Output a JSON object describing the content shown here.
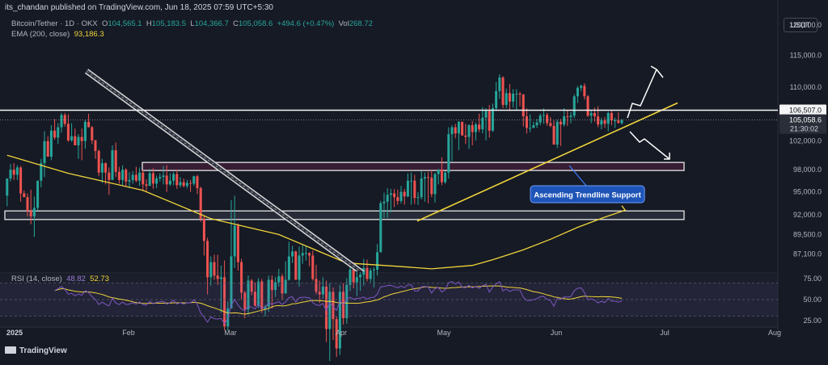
{
  "header": {
    "publisher": "its_chandan published on TradingView.com, Jun 18, 2025 07:59 UTC+5:30"
  },
  "legend": {
    "symbol": "Bitcoin/Tether · 1D · OKX",
    "open_label": "O",
    "open": "104,565.1",
    "high_label": "H",
    "high": "105,183.5",
    "low_label": "L",
    "low": "104,366.7",
    "close_label": "C",
    "close": "105,058.6",
    "change": "+494.6 (+0.47%)",
    "vol_label": "Vol",
    "vol": "268.72",
    "ema_label": "EMA (200, close)",
    "ema_value": "93,186.3"
  },
  "currency_button": "USDT",
  "price_labels": {
    "resistance": "106,507.0",
    "last_price": "105,058.6",
    "countdown": "21:30:02"
  },
  "annotation": "Ascending Trendline Support",
  "rsi_legend": {
    "label": "RSI (14, close)",
    "rsi": "48.82",
    "ma": "52.73"
  },
  "footer": {
    "brand": "TradingView"
  },
  "colors": {
    "background": "#161a25",
    "up": "#26a69a",
    "down": "#ef5350",
    "trendline": "#f0d43a",
    "ema": "#f0d43a",
    "rsi": "#7e57c2",
    "annotation_bg": "#1e54b7",
    "arrows": "#ffffff"
  },
  "chart_data": {
    "type": "candlestick",
    "xaxis": {
      "ticks": [
        "2025",
        "Feb",
        "Mar",
        "Apr",
        "May",
        "Jun",
        "Jul",
        "Aug"
      ]
    },
    "yaxis": {
      "ticks": [
        "120,000.0",
        "115,000.0",
        "110,000.0",
        "102,000.0",
        "98,000.0",
        "95,000.0",
        "92,000.0",
        "89,500.0",
        "87,100.0"
      ],
      "ylim": [
        85000,
        121500
      ],
      "scale": "log"
    },
    "candles": {
      "description": "Daily OHLC, approximate, read from chart",
      "o": [
        94500,
        96800,
        98000,
        97300,
        98300,
        94800,
        94300,
        92500,
        91800,
        92900,
        96500,
        98900,
        102000,
        99800,
        103500,
        102500,
        104000,
        105800,
        104500,
        102100,
        102700,
        101400,
        102600,
        102000,
        104800,
        104000,
        102100,
        100600,
        97600,
        98900,
        97600,
        96600,
        100700,
        97700,
        96600,
        98000,
        96400,
        96600,
        97300,
        96500,
        97600,
        96000,
        95800,
        97500,
        96100,
        96800,
        97000,
        97200,
        96000,
        96500,
        97400,
        95900,
        96300,
        95800,
        96200,
        96100,
        97100,
        95500,
        91500,
        88700,
        84300,
        86100,
        84500,
        84100,
        84300,
        78700,
        80700,
        86800,
        90600,
        86100,
        82500,
        80600,
        83900,
        82600,
        81000,
        83800,
        80600,
        80900,
        84000,
        82800,
        83700,
        84400,
        82400,
        84000,
        86800,
        87400,
        84000,
        86900,
        87200,
        87200,
        86900,
        84100,
        82600,
        82300,
        83200,
        78400,
        82600,
        79500,
        76300,
        82600,
        79600,
        83400,
        85200,
        83700,
        84300,
        84600,
        85400,
        84100,
        85100,
        85200,
        87300,
        93500,
        93700,
        94600,
        94800,
        94300,
        93800,
        95000,
        94400,
        96500,
        96500,
        94200,
        94300,
        96800,
        97000,
        96900,
        94700,
        97400,
        98000,
        96300,
        97600,
        103000,
        104000,
        103100,
        104800,
        102800,
        102600,
        104300,
        103300,
        104400,
        103700,
        105400,
        106400,
        103500,
        106800,
        109400,
        111500,
        107300,
        109100,
        107800,
        109000,
        109000,
        108900,
        105600,
        103900,
        103900,
        104300,
        104700,
        105700,
        105800,
        104600,
        104200,
        101500,
        104800,
        104400,
        105600,
        105500,
        105700,
        108600,
        109900,
        110200,
        108600,
        105700,
        106100,
        105600,
        104400,
        105000,
        104500,
        106100,
        105000,
        105000,
        104600
      ],
      "h": [
        95900,
        98800,
        98900,
        98600,
        98500,
        95200,
        94800,
        95300,
        94400,
        96500,
        99500,
        103400,
        102700,
        104300,
        105200,
        104600,
        106100,
        106100,
        105900,
        104600,
        103800,
        103000,
        103800,
        105100,
        106000,
        104200,
        102200,
        100800,
        99500,
        99000,
        98300,
        101400,
        101800,
        98400,
        98600,
        98200,
        97700,
        97800,
        98400,
        98300,
        98000,
        96700,
        98100,
        98200,
        97200,
        97500,
        98500,
        98600,
        97500,
        97700,
        98000,
        97000,
        96800,
        96600,
        96600,
        97200,
        97300,
        95700,
        91800,
        89100,
        86800,
        87000,
        87000,
        85700,
        86300,
        81500,
        93900,
        94500,
        90900,
        86500,
        82700,
        84500,
        84100,
        83700,
        84200,
        84100,
        81100,
        84500,
        84500,
        84300,
        85300,
        84700,
        86200,
        88600,
        88100,
        87500,
        88000,
        88300,
        88100,
        87300,
        87500,
        85800,
        83900,
        84300,
        83900,
        83600,
        83100,
        79800,
        83400,
        83600,
        84200,
        85900,
        86100,
        85500,
        84900,
        86500,
        86400,
        85400,
        85500,
        88300,
        93800,
        94900,
        95500,
        95400,
        95400,
        95300,
        95800,
        95400,
        97500,
        97600,
        97300,
        95000,
        97800,
        97600,
        97700,
        97900,
        97600,
        98100,
        99700,
        97800,
        104000,
        104300,
        104500,
        104900,
        104800,
        104500,
        104400,
        104900,
        104700,
        106000,
        107000,
        106800,
        107300,
        107500,
        110800,
        112000,
        111700,
        109800,
        110500,
        109700,
        109700,
        109300,
        108900,
        106800,
        105900,
        104800,
        105200,
        106000,
        106800,
        106100,
        105500,
        105000,
        105100,
        105200,
        106800,
        106500,
        106200,
        108900,
        110200,
        110400,
        110600,
        108800,
        106500,
        106900,
        107100,
        105400,
        105500,
        106300,
        106400,
        105400,
        106200,
        105200
      ],
      "l": [
        93100,
        96400,
        96600,
        96600,
        93700,
        94300,
        91800,
        90800,
        89200,
        92600,
        95600,
        97000,
        99800,
        99300,
        102200,
        101600,
        103200,
        104100,
        101900,
        101900,
        101700,
        99500,
        99300,
        100900,
        104000,
        101600,
        99500,
        97100,
        96200,
        96000,
        94600,
        96600,
        97000,
        96100,
        95900,
        95800,
        95500,
        96100,
        96300,
        95800,
        95100,
        95000,
        95900,
        95400,
        95500,
        96400,
        96000,
        95000,
        95800,
        95900,
        95400,
        95600,
        95600,
        95500,
        95000,
        95800,
        94700,
        91100,
        86900,
        82300,
        83300,
        84000,
        83400,
        80200,
        78300,
        78200,
        80700,
        85400,
        85100,
        81700,
        79600,
        80000,
        82200,
        80900,
        80700,
        80200,
        79800,
        80300,
        80700,
        82000,
        83200,
        81700,
        82400,
        83900,
        86000,
        84000,
        83200,
        85900,
        86300,
        85600,
        83900,
        82300,
        81300,
        81800,
        77000,
        74500,
        77200,
        75400,
        75600,
        78900,
        79000,
        82700,
        83000,
        82100,
        82700,
        83300,
        83800,
        83700,
        83100,
        84500,
        87300,
        91600,
        91600,
        92300,
        93000,
        93300,
        93500,
        93300,
        94300,
        93300,
        93400,
        93300,
        94000,
        93700,
        93500,
        94300,
        93600,
        96000,
        95900,
        96100,
        96800,
        99200,
        102400,
        100700,
        102900,
        101600,
        100900,
        101400,
        102100,
        103300,
        103100,
        102100,
        102500,
        103300,
        106400,
        108200,
        106800,
        106800,
        106400,
        106900,
        106500,
        107100,
        104100,
        103100,
        103300,
        103900,
        103900,
        104300,
        104500,
        104200,
        104000,
        102900,
        101000,
        101300,
        104100,
        104200,
        104600,
        105300,
        107600,
        109400,
        108100,
        105500,
        104600,
        104800,
        104000,
        103700,
        103900,
        103400,
        104300,
        103900,
        104600,
        104400
      ],
      "c": [
        96800,
        98000,
        97300,
        98300,
        94800,
        94300,
        92500,
        91800,
        92900,
        96500,
        98900,
        102000,
        99800,
        103500,
        102500,
        104000,
        105800,
        104500,
        102100,
        102700,
        101400,
        102600,
        102000,
        104800,
        104000,
        102100,
        100600,
        97600,
        98900,
        97600,
        96600,
        100700,
        97700,
        96600,
        98000,
        96400,
        96600,
        97300,
        96500,
        97600,
        96000,
        95800,
        97500,
        96100,
        96800,
        97000,
        97200,
        96000,
        96500,
        97400,
        95900,
        96300,
        95800,
        96200,
        96100,
        97100,
        95500,
        91500,
        88700,
        84300,
        86100,
        84500,
        84100,
        84300,
        78700,
        80700,
        86800,
        90600,
        86100,
        82500,
        80600,
        83900,
        82600,
        81000,
        83800,
        80600,
        80900,
        84000,
        82800,
        83700,
        84400,
        82400,
        84000,
        86800,
        87400,
        84000,
        86900,
        87200,
        87200,
        86900,
        84100,
        82600,
        82300,
        83200,
        78400,
        82600,
        79500,
        76300,
        82600,
        79600,
        83400,
        85200,
        83700,
        84300,
        84600,
        85400,
        84100,
        85100,
        85200,
        87300,
        93500,
        93700,
        94600,
        94800,
        94300,
        93800,
        95000,
        94400,
        96500,
        96500,
        94200,
        94300,
        96800,
        97000,
        96900,
        94700,
        97400,
        98000,
        96300,
        97600,
        103000,
        104000,
        103100,
        104800,
        102800,
        102600,
        104300,
        103300,
        104400,
        103700,
        105400,
        106400,
        103500,
        106800,
        109400,
        111500,
        107300,
        109100,
        107800,
        109000,
        109000,
        108900,
        105600,
        103900,
        103900,
        104300,
        104700,
        105700,
        105800,
        104600,
        104200,
        101500,
        104800,
        104400,
        105600,
        105500,
        105700,
        108600,
        109900,
        110200,
        108600,
        105700,
        106100,
        105600,
        104400,
        105000,
        104500,
        106100,
        105000,
        105000,
        104600,
        105058.6
      ]
    },
    "ema200": {
      "label": "EMA (200, close)",
      "last": 93186.3
    },
    "levels": {
      "resistance": 106507.0,
      "zones": [
        [
          98000,
          99000
        ],
        [
          91500,
          92500
        ]
      ]
    },
    "rsi": {
      "label": "RSI (14, close)",
      "value": 48.82,
      "ma": 52.73,
      "yticks": [
        "75.00",
        "50.00",
        "25.00"
      ],
      "ylim": [
        20,
        80
      ]
    }
  }
}
